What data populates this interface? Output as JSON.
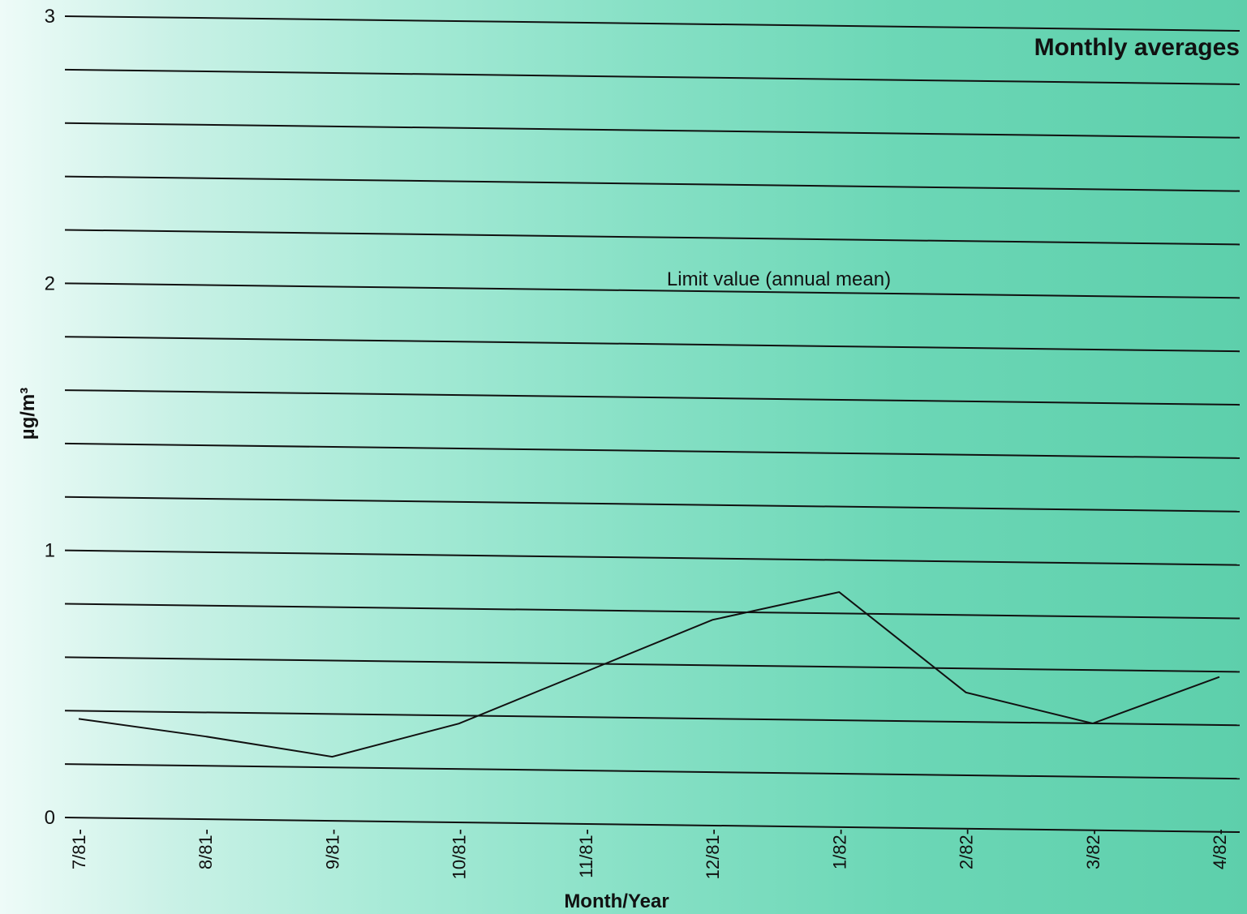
{
  "chart_data": {
    "type": "line",
    "title": "Monthly averages",
    "xlabel": "Month/Year",
    "ylabel": "µg/m³",
    "ylim": [
      0,
      3
    ],
    "yticks": [
      0,
      1,
      2,
      3
    ],
    "ytick_labels": [
      "0",
      "1",
      "2",
      "3"
    ],
    "grid": "horizontal lines every 0.2 µg/m³",
    "grid_values": [
      0,
      0.2,
      0.4,
      0.6,
      0.8,
      1.0,
      1.2,
      1.4,
      1.6,
      1.8,
      2.0,
      2.2,
      2.4,
      2.6,
      2.8,
      3.0
    ],
    "categories": [
      "7/81-",
      "8/81-",
      "9/81-",
      "10/81-",
      "11/81-",
      "12/81-",
      "1/82-",
      "2/82-",
      "3/82-",
      "4/82-"
    ],
    "series": [
      {
        "values": [
          0.37,
          0.31,
          0.24,
          0.37,
          0.57,
          0.77,
          0.88,
          0.51,
          0.4,
          0.58
        ]
      }
    ],
    "reference_line": {
      "label": "Limit value (annual mean)",
      "value": 2.0
    },
    "colors": {
      "line": "#111111",
      "grid": "#111111"
    }
  }
}
